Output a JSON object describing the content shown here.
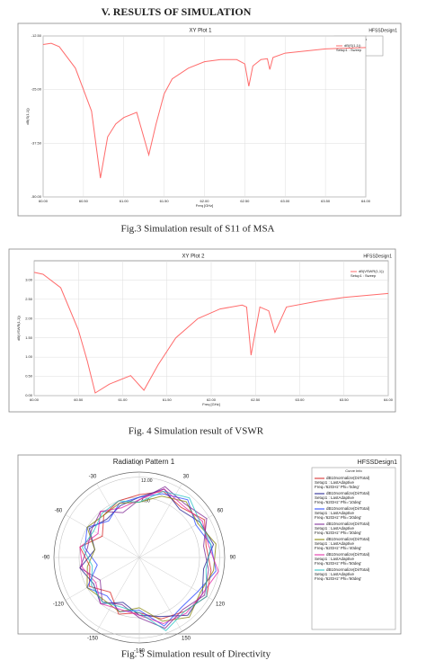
{
  "heading": "V.  RESULTS OF SIMULATION",
  "captions": [
    "Fig.3  Simulation result of  S11 of MSA",
    "Fig. 4 Simulation result of  VSWR",
    "Fig. 5 Simulation result of Directivity"
  ],
  "chart_data": [
    {
      "type": "line",
      "title": "XY Plot 1",
      "project": "HFSSDesign1",
      "legend_title": "Curve Info",
      "x_label": "Freq [GHz]",
      "y_label": "dB(S(1,1))",
      "x": [
        60.0,
        60.1,
        60.2,
        60.4,
        60.6,
        60.71,
        60.8,
        60.9,
        61.0,
        61.16,
        61.31,
        61.4,
        61.5,
        61.6,
        61.8,
        62.0,
        62.2,
        62.4,
        62.5,
        62.55,
        62.6,
        62.7,
        62.78,
        62.81,
        62.85,
        63.0,
        63.5,
        64.0
      ],
      "series": [
        {
          "name": "dB(S(1,1))",
          "setup": "Setup1 : Sweep",
          "color": "#ff6b6b",
          "values": [
            -14.5,
            -14.2,
            -15,
            -20,
            -30,
            -45.6,
            -36,
            -33,
            -31.5,
            -30.3,
            -40.2,
            -33,
            -26,
            -22.5,
            -20,
            -18.5,
            -18,
            -18,
            -19,
            -24.2,
            -19.5,
            -18,
            -17.8,
            -20.3,
            -17.5,
            -16.5,
            -15.5,
            -15.2
          ]
        }
      ],
      "xlim": [
        60,
        64
      ],
      "xticks": [
        {
          "value": 60,
          "label": "60.00"
        },
        {
          "value": 60.5,
          "label": "60.50"
        },
        {
          "value": 61,
          "label": "61.00"
        },
        {
          "value": 61.5,
          "label": "61.50"
        },
        {
          "value": 62,
          "label": "62.00"
        },
        {
          "value": 62.5,
          "label": "62.50"
        },
        {
          "value": 63,
          "label": "63.00"
        },
        {
          "value": 63.5,
          "label": "63.50"
        },
        {
          "value": 64,
          "label": "64.00"
        }
      ],
      "ylim": [
        -50,
        -12.5
      ],
      "yticks": [
        {
          "value": -12.5,
          "label": "-12.50"
        },
        {
          "value": -25,
          "label": "-25.00"
        },
        {
          "value": -37.5,
          "label": "-37.50"
        },
        {
          "value": -50,
          "label": "-50.00"
        }
      ],
      "grid": true
    },
    {
      "type": "line",
      "title": "XY Plot 2",
      "project": "HFSSDesign1",
      "legend_title": "Curve Info",
      "x_label": "Freq [GHz]",
      "y_label": "dB(VSWR(1,1))",
      "x": [
        60.0,
        60.1,
        60.3,
        60.5,
        60.6,
        60.69,
        60.85,
        61.09,
        61.24,
        61.4,
        61.6,
        61.85,
        62.1,
        62.35,
        62.4,
        62.45,
        62.55,
        62.65,
        62.72,
        62.85,
        63.2,
        63.5,
        64.0
      ],
      "series": [
        {
          "name": "dB(VSWR(1,1))",
          "setup": "Setup1 : Sweep",
          "color": "#ff6b6b",
          "values": [
            3.2,
            3.15,
            2.8,
            1.7,
            0.9,
            0.07,
            0.3,
            0.52,
            0.14,
            0.8,
            1.5,
            2.0,
            2.25,
            2.35,
            2.3,
            1.05,
            2.3,
            2.2,
            1.64,
            2.3,
            2.45,
            2.55,
            2.65
          ]
        }
      ],
      "xlim": [
        60,
        64
      ],
      "xticks": [
        {
          "value": 60,
          "label": "60.00"
        },
        {
          "value": 60.5,
          "label": "60.50"
        },
        {
          "value": 61,
          "label": "61.00"
        },
        {
          "value": 61.5,
          "label": "61.50"
        },
        {
          "value": 62,
          "label": "62.00"
        },
        {
          "value": 62.5,
          "label": "62.50"
        },
        {
          "value": 63,
          "label": "63.00"
        },
        {
          "value": 63.5,
          "label": "63.50"
        },
        {
          "value": 64,
          "label": "64.00"
        }
      ],
      "ylim": [
        0,
        3.5
      ],
      "yticks": [
        {
          "value": 0,
          "label": "0.00"
        },
        {
          "value": 0.5,
          "label": "0.50"
        },
        {
          "value": 1,
          "label": "1.00"
        },
        {
          "value": 1.5,
          "label": "1.50"
        },
        {
          "value": 2,
          "label": "2.00"
        },
        {
          "value": 2.5,
          "label": "2.50"
        },
        {
          "value": 3,
          "label": "3.00"
        }
      ],
      "grid": true
    },
    {
      "type": "polar",
      "title": "Radiation Pattern 1",
      "project": "HFSSDesign1",
      "legend_title": "Curve Info",
      "theta": [
        -180,
        -160,
        -140,
        -120,
        -100,
        -80,
        -60,
        -40,
        -20,
        0,
        20,
        40,
        60,
        80,
        100,
        120,
        140,
        160,
        180
      ],
      "thetaticks": [
        0,
        30,
        60,
        90,
        120,
        150,
        -180,
        -150,
        -120,
        -90,
        -60,
        -30
      ],
      "rlim": [
        -20,
        14
      ],
      "rticks": [
        {
          "value": 4,
          "label": "4.00"
        },
        {
          "value": 12,
          "label": "12.00"
        }
      ],
      "series": [
        {
          "name": "dB10normalize(DirTotal)",
          "setup": "Setup1 : LastAdaptive",
          "params": "Freq='62GHz' Phi='0deg'",
          "color": "#d62020",
          "values": [
            2,
            4,
            -2,
            3,
            0,
            4,
            -3,
            2,
            4,
            5,
            8,
            6,
            10,
            7,
            9,
            11,
            8,
            6,
            2
          ]
        },
        {
          "name": "dB10normalize(DirTotal)",
          "setup": "Setup1 : LastAdaptive",
          "params": "Freq='62GHz' Phi='10deg'",
          "color": "#1a1a8c",
          "values": [
            3,
            -1,
            4,
            1,
            4,
            -2,
            3,
            0,
            2,
            4,
            9,
            5,
            8,
            10,
            6,
            9,
            10,
            5,
            3
          ]
        },
        {
          "name": "dB10normalize(DirTotal)",
          "setup": "Setup1 : LastAdaptive",
          "params": "Freq='62GHz' Phi='20deg'",
          "color": "#2040ff",
          "values": [
            1,
            3,
            0,
            4,
            -3,
            2,
            4,
            -1,
            3,
            4,
            7,
            10,
            6,
            9,
            11,
            7,
            6,
            9,
            1
          ]
        },
        {
          "name": "dB10normalize(DirTotal)",
          "setup": "Setup1 : LastAdaptive",
          "params": "Freq='62GHz' Phi='30deg'",
          "color": "#7a2090",
          "values": [
            4,
            0,
            3,
            -2,
            4,
            1,
            2,
            4,
            -1,
            3,
            10,
            8,
            11,
            6,
            8,
            10,
            7,
            10,
            4
          ]
        },
        {
          "name": "dB10normalize(DirTotal)",
          "setup": "Setup1 : LastAdaptive",
          "params": "Freq='62GHz' Phi='40deg'",
          "color": "#808000",
          "values": [
            0,
            3,
            2,
            4,
            1,
            -2,
            4,
            2,
            3,
            2,
            6,
            9,
            7,
            11,
            10,
            8,
            11,
            7,
            0
          ]
        },
        {
          "name": "dB10normalize(DirTotal)",
          "setup": "Setup1 : LastAdaptive",
          "params": "Freq='62GHz' Phi='50deg'",
          "color": "#e020a0",
          "values": [
            3,
            2,
            4,
            0,
            3,
            4,
            -1,
            4,
            1,
            3,
            9,
            7,
            9,
            8,
            12,
            9,
            9,
            8,
            3
          ]
        },
        {
          "name": "dB10normalize(DirTotal)",
          "setup": "Setup1 : LastAdaptive",
          "params": "Freq='62GHz' Phi='60deg'",
          "color": "#20c0c0",
          "values": [
            2,
            1,
            3,
            2,
            -1,
            3,
            1,
            3,
            4,
            2,
            8,
            11,
            8,
            9,
            7,
            11,
            8,
            11,
            2
          ]
        }
      ]
    }
  ]
}
